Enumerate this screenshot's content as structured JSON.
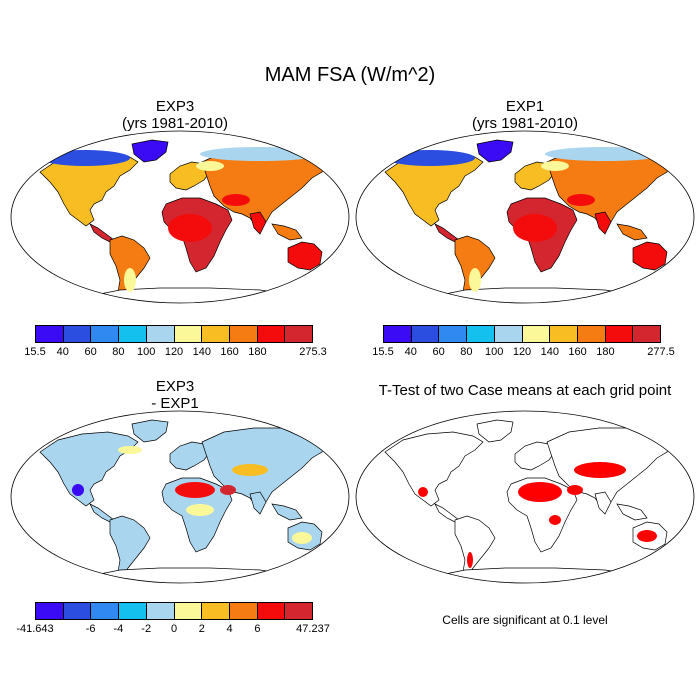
{
  "figure": {
    "title": "MAM FSA (W/m^2)"
  },
  "panels": [
    {
      "id": "exp3",
      "title_line1": "EXP3",
      "title_line2": "(yrs 1981-2010)",
      "colorbar": {
        "colors": [
          "#3b0bf5",
          "#2b4ee0",
          "#2f89f0",
          "#14c0ee",
          "#a9d6ee",
          "#fbf89a",
          "#f8bd22",
          "#f57c12",
          "#f40c0c",
          "#d3262f"
        ],
        "labels": [
          "15.5",
          "40",
          "60",
          "80",
          "100",
          "120",
          "140",
          "160",
          "180",
          "275.3"
        ]
      }
    },
    {
      "id": "exp1",
      "title_line1": "EXP1",
      "title_line2": "(yrs 1981-2010)",
      "colorbar": {
        "colors": [
          "#3b0bf5",
          "#2b4ee0",
          "#2f89f0",
          "#14c0ee",
          "#a9d6ee",
          "#fbf89a",
          "#f8bd22",
          "#f57c12",
          "#f40c0c",
          "#d3262f"
        ],
        "labels": [
          "15.5",
          "40",
          "60",
          "80",
          "100",
          "120",
          "140",
          "160",
          "180",
          "277.5"
        ]
      }
    },
    {
      "id": "diff",
      "title_line1": "EXP3",
      "title_line2": "- EXP1",
      "colorbar": {
        "colors": [
          "#3b0bf5",
          "#2b4ee0",
          "#2f89f0",
          "#14c0ee",
          "#a9d6ee",
          "#fbf89a",
          "#f8bd22",
          "#f57c12",
          "#f40c0c",
          "#d3262f"
        ],
        "labels": [
          "-41.643",
          "-6",
          "-4",
          "-2",
          "0",
          "2",
          "4",
          "6",
          "47.237"
        ]
      }
    },
    {
      "id": "ttest",
      "title_line1": "T-Test of two Case means at each grid point",
      "note": "Cells are significant at 0.1 level",
      "sig_color": "#ff0000"
    }
  ]
}
